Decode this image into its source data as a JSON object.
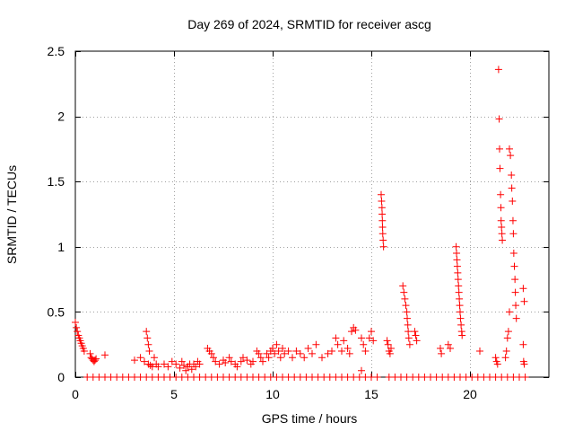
{
  "chart_data": {
    "type": "scatter",
    "title": "Day 269 of 2024, SRMTID for receiver ascg",
    "xlabel": "GPS time / hours",
    "ylabel": "SRMTID / TECUs",
    "xlim": [
      0,
      24
    ],
    "ylim": [
      0,
      2.5
    ],
    "xticks": [
      0,
      5,
      10,
      15,
      20
    ],
    "xtick_labels": [
      "0",
      "5",
      "10",
      "15",
      "20"
    ],
    "yticks": [
      0,
      0.5,
      1,
      1.5,
      2,
      2.5
    ],
    "ytick_labels": [
      "0",
      "0.5",
      "1",
      "1.5",
      "2",
      "2.5"
    ],
    "grid": true,
    "marker": "+",
    "series_color": "#ff0000",
    "series": [
      {
        "name": "SRMTID",
        "points": [
          [
            0.0,
            0.42
          ],
          [
            0.05,
            0.38
          ],
          [
            0.1,
            0.35
          ],
          [
            0.15,
            0.32
          ],
          [
            0.2,
            0.3
          ],
          [
            0.25,
            0.28
          ],
          [
            0.3,
            0.26
          ],
          [
            0.35,
            0.24
          ],
          [
            0.4,
            0.22
          ],
          [
            0.45,
            0.2
          ],
          [
            0.75,
            0.18
          ],
          [
            0.8,
            0.15
          ],
          [
            0.85,
            0.14
          ],
          [
            0.9,
            0.13
          ],
          [
            0.95,
            0.12
          ],
          [
            1.0,
            0.13
          ],
          [
            1.05,
            0.14
          ],
          [
            1.5,
            0.17
          ],
          [
            0.6,
            0.0
          ],
          [
            0.9,
            0.0
          ],
          [
            1.2,
            0.0
          ],
          [
            1.5,
            0.0
          ],
          [
            1.8,
            0.0
          ],
          [
            2.1,
            0.0
          ],
          [
            2.4,
            0.0
          ],
          [
            2.7,
            0.0
          ],
          [
            3.0,
            0.0
          ],
          [
            3.3,
            0.0
          ],
          [
            3.0,
            0.13
          ],
          [
            3.3,
            0.15
          ],
          [
            3.5,
            0.12
          ],
          [
            3.6,
            0.35
          ],
          [
            3.65,
            0.3
          ],
          [
            3.7,
            0.25
          ],
          [
            3.75,
            0.2
          ],
          [
            3.7,
            0.1
          ],
          [
            3.8,
            0.09
          ],
          [
            3.9,
            0.08
          ],
          [
            4.0,
            0.15
          ],
          [
            4.1,
            0.1
          ],
          [
            4.2,
            0.08
          ],
          [
            4.5,
            0.1
          ],
          [
            4.7,
            0.08
          ],
          [
            4.9,
            0.12
          ],
          [
            5.1,
            0.1
          ],
          [
            5.3,
            0.07
          ],
          [
            5.4,
            0.12
          ],
          [
            5.5,
            0.09
          ],
          [
            5.6,
            0.05
          ],
          [
            5.7,
            0.08
          ],
          [
            5.8,
            0.1
          ],
          [
            5.9,
            0.06
          ],
          [
            6.0,
            0.1
          ],
          [
            6.1,
            0.08
          ],
          [
            6.2,
            0.12
          ],
          [
            6.3,
            0.1
          ],
          [
            3.6,
            0.0
          ],
          [
            3.9,
            0.0
          ],
          [
            4.2,
            0.0
          ],
          [
            4.5,
            0.0
          ],
          [
            4.8,
            0.0
          ],
          [
            5.1,
            0.0
          ],
          [
            5.4,
            0.0
          ],
          [
            5.7,
            0.0
          ],
          [
            6.0,
            0.0
          ],
          [
            6.3,
            0.0
          ],
          [
            6.6,
            0.0
          ],
          [
            6.7,
            0.22
          ],
          [
            6.8,
            0.2
          ],
          [
            6.9,
            0.18
          ],
          [
            7.0,
            0.15
          ],
          [
            7.1,
            0.12
          ],
          [
            7.3,
            0.1
          ],
          [
            7.5,
            0.13
          ],
          [
            7.6,
            0.11
          ],
          [
            7.8,
            0.15
          ],
          [
            7.9,
            0.12
          ],
          [
            8.1,
            0.1
          ],
          [
            8.2,
            0.08
          ],
          [
            8.4,
            0.12
          ],
          [
            8.5,
            0.15
          ],
          [
            8.7,
            0.13
          ],
          [
            8.9,
            0.1
          ],
          [
            9.0,
            0.12
          ],
          [
            9.2,
            0.2
          ],
          [
            9.3,
            0.18
          ],
          [
            9.4,
            0.15
          ],
          [
            9.5,
            0.12
          ],
          [
            9.7,
            0.18
          ],
          [
            9.8,
            0.15
          ],
          [
            9.9,
            0.2
          ],
          [
            10.0,
            0.22
          ],
          [
            10.1,
            0.18
          ],
          [
            10.2,
            0.25
          ],
          [
            10.3,
            0.2
          ],
          [
            10.4,
            0.15
          ],
          [
            10.5,
            0.22
          ],
          [
            10.6,
            0.18
          ],
          [
            10.8,
            0.2
          ],
          [
            11.0,
            0.15
          ],
          [
            11.2,
            0.2
          ],
          [
            11.4,
            0.18
          ],
          [
            11.6,
            0.15
          ],
          [
            11.8,
            0.22
          ],
          [
            12.0,
            0.18
          ],
          [
            12.2,
            0.25
          ],
          [
            12.5,
            0.15
          ],
          [
            12.8,
            0.18
          ],
          [
            13.0,
            0.2
          ],
          [
            13.2,
            0.3
          ],
          [
            13.3,
            0.25
          ],
          [
            13.5,
            0.2
          ],
          [
            13.6,
            0.28
          ],
          [
            13.8,
            0.22
          ],
          [
            13.9,
            0.18
          ],
          [
            14.0,
            0.35
          ],
          [
            14.1,
            0.38
          ],
          [
            14.2,
            0.36
          ],
          [
            14.5,
            0.3
          ],
          [
            14.6,
            0.25
          ],
          [
            14.7,
            0.2
          ],
          [
            14.5,
            0.05
          ],
          [
            14.9,
            0.3
          ],
          [
            15.0,
            0.35
          ],
          [
            15.1,
            0.28
          ],
          [
            6.9,
            0.0
          ],
          [
            7.2,
            0.0
          ],
          [
            7.5,
            0.0
          ],
          [
            7.8,
            0.0
          ],
          [
            8.1,
            0.0
          ],
          [
            8.4,
            0.0
          ],
          [
            8.7,
            0.0
          ],
          [
            9.0,
            0.0
          ],
          [
            9.3,
            0.0
          ],
          [
            9.6,
            0.0
          ],
          [
            9.9,
            0.0
          ],
          [
            10.2,
            0.0
          ],
          [
            10.5,
            0.0
          ],
          [
            10.8,
            0.0
          ],
          [
            11.1,
            0.0
          ],
          [
            11.4,
            0.0
          ],
          [
            11.7,
            0.0
          ],
          [
            12.0,
            0.0
          ],
          [
            12.3,
            0.0
          ],
          [
            12.6,
            0.0
          ],
          [
            12.9,
            0.0
          ],
          [
            13.2,
            0.0
          ],
          [
            13.5,
            0.0
          ],
          [
            13.8,
            0.0
          ],
          [
            14.1,
            0.0
          ],
          [
            14.4,
            0.0
          ],
          [
            14.7,
            0.0
          ],
          [
            15.0,
            0.0
          ],
          [
            15.3,
            0.0
          ],
          [
            15.5,
            1.4
          ],
          [
            15.52,
            1.35
          ],
          [
            15.54,
            1.3
          ],
          [
            15.55,
            1.25
          ],
          [
            15.56,
            1.2
          ],
          [
            15.57,
            1.15
          ],
          [
            15.58,
            1.1
          ],
          [
            15.6,
            1.05
          ],
          [
            15.62,
            1.0
          ],
          [
            15.8,
            0.28
          ],
          [
            15.85,
            0.25
          ],
          [
            15.9,
            0.2
          ],
          [
            15.95,
            0.18
          ],
          [
            16.0,
            0.22
          ],
          [
            15.9,
            0.0
          ],
          [
            16.2,
            0.0
          ],
          [
            16.5,
            0.0
          ],
          [
            16.6,
            0.7
          ],
          [
            16.65,
            0.65
          ],
          [
            16.7,
            0.6
          ],
          [
            16.75,
            0.55
          ],
          [
            16.8,
            0.5
          ],
          [
            16.82,
            0.45
          ],
          [
            16.85,
            0.4
          ],
          [
            16.87,
            0.35
          ],
          [
            16.9,
            0.3
          ],
          [
            16.95,
            0.25
          ],
          [
            17.2,
            0.35
          ],
          [
            17.25,
            0.32
          ],
          [
            17.3,
            0.28
          ],
          [
            16.8,
            0.0
          ],
          [
            17.1,
            0.0
          ],
          [
            17.4,
            0.0
          ],
          [
            17.7,
            0.0
          ],
          [
            18.0,
            0.0
          ],
          [
            18.3,
            0.0
          ],
          [
            18.6,
            0.0
          ],
          [
            18.9,
            0.0
          ],
          [
            19.2,
            0.0
          ],
          [
            18.5,
            0.22
          ],
          [
            18.55,
            0.18
          ],
          [
            18.9,
            0.25
          ],
          [
            19.0,
            0.22
          ],
          [
            19.3,
            1.0
          ],
          [
            19.32,
            0.95
          ],
          [
            19.34,
            0.9
          ],
          [
            19.36,
            0.85
          ],
          [
            19.38,
            0.8
          ],
          [
            19.4,
            0.75
          ],
          [
            19.42,
            0.7
          ],
          [
            19.44,
            0.65
          ],
          [
            19.46,
            0.6
          ],
          [
            19.48,
            0.55
          ],
          [
            19.5,
            0.5
          ],
          [
            19.52,
            0.45
          ],
          [
            19.55,
            0.4
          ],
          [
            19.58,
            0.35
          ],
          [
            19.6,
            0.32
          ],
          [
            19.5,
            0.0
          ],
          [
            19.8,
            0.0
          ],
          [
            20.1,
            0.0
          ],
          [
            20.4,
            0.0
          ],
          [
            20.7,
            0.0
          ],
          [
            20.5,
            0.2
          ],
          [
            21.0,
            0.0
          ],
          [
            21.3,
            0.15
          ],
          [
            21.35,
            0.12
          ],
          [
            21.4,
            0.1
          ],
          [
            21.45,
            2.36
          ],
          [
            21.48,
            1.98
          ],
          [
            21.5,
            1.75
          ],
          [
            21.52,
            1.6
          ],
          [
            21.55,
            1.4
          ],
          [
            21.57,
            1.3
          ],
          [
            21.58,
            1.2
          ],
          [
            21.6,
            1.15
          ],
          [
            21.62,
            1.1
          ],
          [
            21.64,
            1.05
          ],
          [
            21.8,
            0.15
          ],
          [
            21.85,
            0.2
          ],
          [
            21.9,
            0.3
          ],
          [
            21.95,
            0.35
          ],
          [
            22.0,
            0.5
          ],
          [
            22.0,
            1.75
          ],
          [
            22.05,
            1.7
          ],
          [
            22.1,
            1.55
          ],
          [
            22.12,
            1.45
          ],
          [
            22.15,
            1.35
          ],
          [
            22.18,
            1.2
          ],
          [
            22.2,
            1.1
          ],
          [
            22.22,
            0.95
          ],
          [
            22.25,
            0.85
          ],
          [
            22.28,
            0.75
          ],
          [
            22.3,
            0.65
          ],
          [
            22.32,
            0.55
          ],
          [
            22.35,
            0.45
          ],
          [
            22.7,
            0.68
          ],
          [
            22.75,
            0.58
          ],
          [
            22.7,
            0.25
          ],
          [
            22.72,
            0.12
          ],
          [
            22.75,
            0.1
          ],
          [
            21.3,
            0.0
          ],
          [
            21.6,
            0.0
          ],
          [
            21.9,
            0.0
          ],
          [
            22.2,
            0.0
          ],
          [
            22.5,
            0.0
          ],
          [
            22.8,
            0.0
          ]
        ]
      }
    ]
  }
}
